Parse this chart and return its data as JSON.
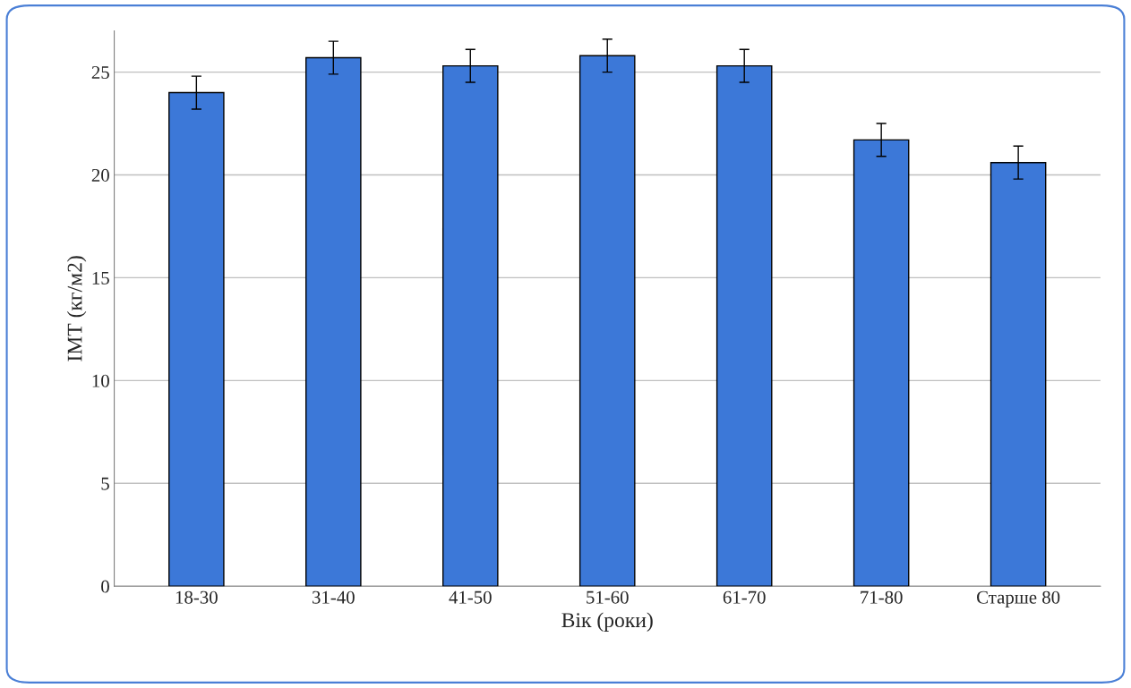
{
  "chart_data": {
    "type": "bar",
    "xlabel": "Вік (роки)",
    "ylabel": "ІМТ (кг/м2)",
    "categories": [
      "18-30",
      "31-40",
      "41-50",
      "51-60",
      "61-70",
      "71-80",
      "Старше 80"
    ],
    "values": [
      24.0,
      25.7,
      25.3,
      25.8,
      25.3,
      21.7,
      20.6
    ],
    "errors": [
      0.8,
      0.8,
      0.8,
      0.8,
      0.8,
      0.8,
      0.8
    ],
    "color": "#3c78d8",
    "ylim": [
      0,
      27
    ],
    "yticks": [
      0,
      5,
      10,
      15,
      20,
      25
    ],
    "grid": "y",
    "legend": false
  }
}
